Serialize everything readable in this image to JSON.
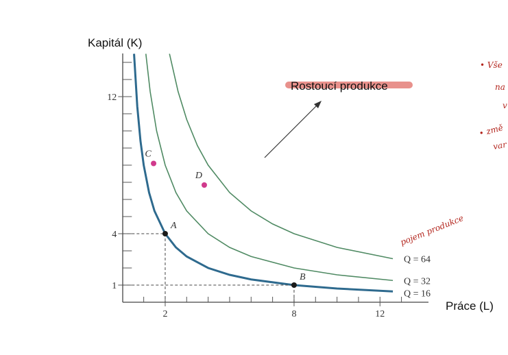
{
  "chart_data": {
    "type": "line",
    "y_label": "Kapitál (K)",
    "x_label": "Práce (L)",
    "annotation": "Rostoucí produkce",
    "xlim": [
      0,
      14.3
    ],
    "ylim": [
      0,
      14.5
    ],
    "xticks": [
      2,
      8,
      12
    ],
    "yticks": [
      1,
      4,
      12
    ],
    "xminor": [
      1,
      2,
      3,
      4,
      5,
      6,
      7,
      8,
      9,
      10,
      11,
      12,
      13
    ],
    "yminor": [
      1,
      2,
      3,
      4,
      5,
      6,
      7,
      8,
      9,
      10,
      11,
      12,
      13,
      14
    ],
    "series": [
      {
        "name": "Q = 16",
        "color": "#2e6a8e",
        "x": [
          0.55,
          0.7,
          0.85,
          1,
          1.25,
          1.5,
          2,
          2.5,
          3,
          4,
          5,
          6,
          8,
          10,
          12.6
        ],
        "values": [
          14.5,
          11.43,
          9.41,
          8,
          6.4,
          5.33,
          4,
          3.2,
          2.67,
          2,
          1.6,
          1.33,
          1,
          0.8,
          0.63
        ]
      },
      {
        "name": "Q = 32",
        "color": "#4f8a63",
        "x": [
          1.1,
          1.3,
          1.6,
          2,
          2.5,
          3,
          4,
          5,
          6,
          8,
          10,
          12.6
        ],
        "values": [
          14.5,
          12.3,
          10,
          8,
          6.4,
          5.33,
          4,
          3.2,
          2.67,
          2,
          1.6,
          1.27
        ]
      },
      {
        "name": "Q = 64",
        "color": "#4f8a63",
        "x": [
          2.2,
          2.6,
          3,
          3.5,
          4,
          5,
          6,
          7,
          8,
          10,
          12.6
        ],
        "values": [
          14.5,
          12.3,
          10.67,
          9.14,
          8,
          6.4,
          5.33,
          4.57,
          4,
          3.2,
          2.54
        ]
      }
    ],
    "points": [
      {
        "label": "A",
        "x": 2,
        "y": 4,
        "color": "#1a1a1a",
        "dashed": true
      },
      {
        "label": "B",
        "x": 8,
        "y": 1,
        "color": "#1a1a1a",
        "dashed": true
      },
      {
        "label": "C",
        "x": 1.46,
        "y": 8.1,
        "color": "#d03a8c",
        "dashed": false
      },
      {
        "label": "D",
        "x": 3.82,
        "y": 6.84,
        "color": "#d03a8c",
        "dashed": false
      }
    ],
    "handwritten_notes": [
      "• Vše",
      "na",
      "v",
      "• změ",
      "var",
      "pojem produkce"
    ]
  }
}
